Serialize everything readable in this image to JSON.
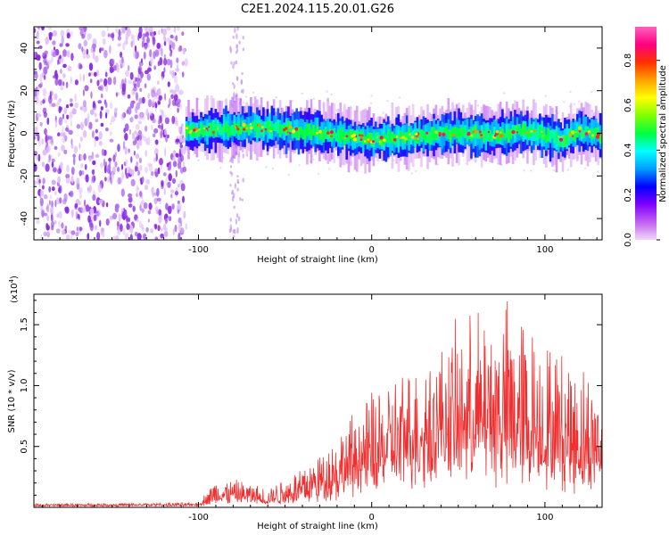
{
  "chart_data": [
    {
      "type": "heatmap",
      "title": "C2E1.2024.115.20.01.G26",
      "xlabel": "Height of straight line (km)",
      "ylabel": "Frequency (Hz)",
      "xlim": [
        -195,
        133
      ],
      "ylim": [
        -50,
        50
      ],
      "x_ticks": [
        -100,
        0,
        100
      ],
      "x_tick_labels": [
        "-100",
        "0",
        "100"
      ],
      "y_ticks": [
        -40,
        -20,
        0,
        20,
        40
      ],
      "y_tick_labels": [
        "-40",
        "-20",
        "0",
        "20",
        "40"
      ],
      "colorbar": {
        "label": "Normalized spectral amplitude",
        "range": [
          0,
          0.95
        ],
        "ticks": [
          0.0,
          0.2,
          0.4,
          0.6,
          0.8
        ],
        "tick_labels": [
          "0.0",
          "0.2",
          "0.4",
          "0.6",
          "0.8"
        ],
        "colormap": [
          "#f0d8f8",
          "#c060f0",
          "#8000ff",
          "#0000ff",
          "#00a0ff",
          "#00ffff",
          "#00ff40",
          "#80ff00",
          "#ffff00",
          "#ffa000",
          "#ff3000",
          "#ff0080",
          "#ff60c0"
        ]
      },
      "noise_region": {
        "x_start": -195,
        "x_end": -107,
        "amplitude": 0.1
      },
      "noise_strip": {
        "x_start": -82,
        "x_end": -74
      },
      "doppler_trace": [
        {
          "x": -107,
          "y": 1
        },
        {
          "x": -90,
          "y": 2
        },
        {
          "x": -70,
          "y": 3
        },
        {
          "x": -55,
          "y": 2
        },
        {
          "x": -40,
          "y": 1
        },
        {
          "x": -25,
          "y": 0
        },
        {
          "x": -10,
          "y": -2
        },
        {
          "x": 0,
          "y": -3
        },
        {
          "x": 20,
          "y": -2
        },
        {
          "x": 40,
          "y": 0
        },
        {
          "x": 55,
          "y": 0
        },
        {
          "x": 70,
          "y": -1
        },
        {
          "x": 85,
          "y": 1
        },
        {
          "x": 100,
          "y": -1
        },
        {
          "x": 110,
          "y": -3
        },
        {
          "x": 120,
          "y": 1
        },
        {
          "x": 133,
          "y": -1
        }
      ]
    },
    {
      "type": "line",
      "xlabel": "Height of straight line (km)",
      "ylabel": "SNR (10 * v/v)",
      "y_multiplier": "(x10",
      "y_multiplier_exp": "4",
      "y_multiplier_close": ")",
      "xlim": [
        -195,
        133
      ],
      "ylim": [
        0,
        17500
      ],
      "x_ticks": [
        -100,
        0,
        100
      ],
      "x_tick_labels": [
        "-100",
        "0",
        "100"
      ],
      "y_ticks": [
        5000,
        10000,
        15000
      ],
      "y_tick_labels": [
        "0.5",
        "1.0",
        "1.5"
      ],
      "line_color": "#f03030",
      "envelope": [
        {
          "x": -195,
          "base": 150,
          "amp": 150
        },
        {
          "x": -100,
          "base": 200,
          "amp": 200
        },
        {
          "x": -90,
          "base": 600,
          "amp": 1800
        },
        {
          "x": -75,
          "base": 700,
          "amp": 1500
        },
        {
          "x": -60,
          "base": 400,
          "amp": 1200
        },
        {
          "x": -45,
          "base": 800,
          "amp": 2200
        },
        {
          "x": -30,
          "base": 1200,
          "amp": 3500
        },
        {
          "x": -15,
          "base": 2000,
          "amp": 5000
        },
        {
          "x": 0,
          "base": 3000,
          "amp": 6500
        },
        {
          "x": 20,
          "base": 4000,
          "amp": 7500
        },
        {
          "x": 40,
          "base": 5000,
          "amp": 8500
        },
        {
          "x": 60,
          "base": 5000,
          "amp": 11000
        },
        {
          "x": 80,
          "base": 4500,
          "amp": 12500
        },
        {
          "x": 100,
          "base": 4000,
          "amp": 10000
        },
        {
          "x": 115,
          "base": 3500,
          "amp": 9000
        },
        {
          "x": 133,
          "base": 3000,
          "amp": 7500
        }
      ]
    }
  ]
}
